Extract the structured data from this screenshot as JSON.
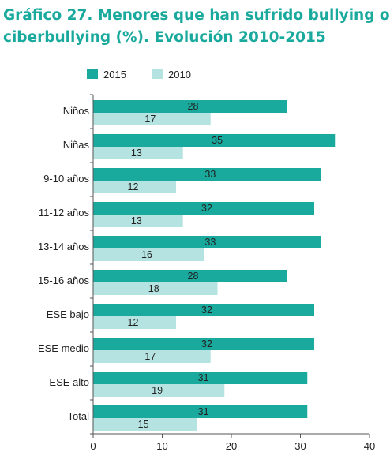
{
  "title_line1": "Gráfico 27. Menores que han sufrido bullying o",
  "title_line2": "ciberbullying (%). Evolución 2010-2015",
  "colors": {
    "series_2015": "#1aa99d",
    "series_2010": "#b5e3e1",
    "title": "#1aa99d"
  },
  "chart_data": {
    "type": "bar",
    "orientation": "horizontal",
    "title": "Gráfico 27. Menores que han sufrido bullying o ciberbullying (%). Evolución 2010-2015",
    "categories": [
      "Niños",
      "Niñas",
      "9-10 años",
      "11-12 años",
      "13-14 años",
      "15-16 años",
      "ESE bajo",
      "ESE medio",
      "ESE alto",
      "Total"
    ],
    "series": [
      {
        "name": "2015",
        "values": [
          28,
          35,
          33,
          32,
          33,
          28,
          32,
          32,
          31,
          31
        ]
      },
      {
        "name": "2010",
        "values": [
          17,
          13,
          12,
          13,
          16,
          18,
          12,
          17,
          19,
          15
        ]
      }
    ],
    "xlim": [
      0,
      40
    ],
    "xticks": [
      0,
      10,
      20,
      30,
      40
    ],
    "legend_position": "top-left",
    "grid": false
  }
}
